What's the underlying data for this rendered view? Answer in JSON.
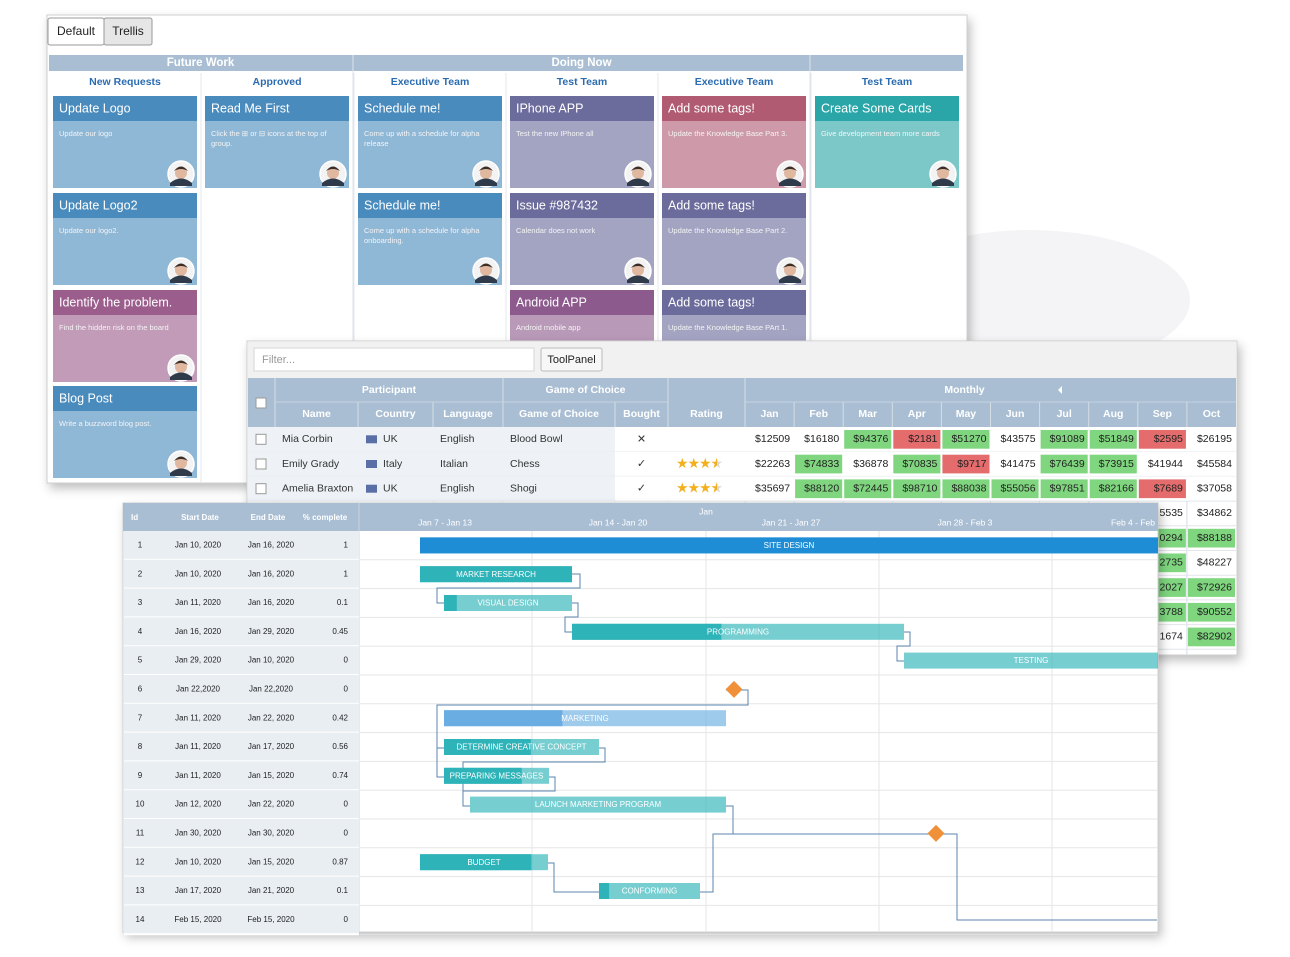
{
  "kanban": {
    "views": [
      "Default",
      "Trellis"
    ],
    "groups": [
      {
        "title": "Future Work",
        "columns": [
          {
            "title": "New Requests",
            "cards": [
              {
                "title": "Update Logo",
                "text": "Update our logo",
                "color": "#4a8bbd"
              },
              {
                "title": "Update Logo2",
                "text": "Update our logo2.",
                "color": "#4a8bbd"
              },
              {
                "title": "Identify the problem.",
                "text": "Find the hidden risk on the board",
                "color": "#9b5d8c"
              },
              {
                "title": "Blog Post",
                "text": "Write a buzzword blog post.",
                "color": "#4a8bbd"
              }
            ]
          },
          {
            "title": "Approved",
            "cards": [
              {
                "title": "Read Me First",
                "text": "Click the ⊞ or ⊟ icons at the top of group.",
                "color": "#4a8bbd"
              }
            ]
          }
        ]
      },
      {
        "title": "Doing Now",
        "columns": [
          {
            "title": "Executive Team",
            "cards": [
              {
                "title": "Schedule me!",
                "text": "Come up with a schedule for alpha release",
                "color": "#4a8bbd"
              },
              {
                "title": "Schedule me!",
                "text": "Come up with a schedule for alpha onboarding.",
                "color": "#4a8bbd"
              }
            ]
          },
          {
            "title": "Test Team",
            "cards": [
              {
                "title": "IPhone APP",
                "text": "Test the new IPhone all",
                "color": "#6b6b9c"
              },
              {
                "title": "Issue #987432",
                "text": "Calendar does not work",
                "color": "#6b6b9c"
              },
              {
                "title": "Android APP",
                "text": "Android mobile app",
                "color": "#8c5a8c"
              }
            ]
          },
          {
            "title": "Executive Team",
            "cards": [
              {
                "title": "Add some tags!",
                "text": "Update the Knowledge Base Part 3.",
                "color": "#b05b72"
              },
              {
                "title": "Add some tags!",
                "text": "Update the Knowledge Base Part 2.",
                "color": "#6b6b9c"
              },
              {
                "title": "Add some tags!",
                "text": "Update the Knowledge Base PArt 1.",
                "color": "#6b6b9c"
              }
            ]
          }
        ]
      },
      {
        "title": null,
        "columns": [
          {
            "title": "Test Team",
            "cards": [
              {
                "title": "Create Some Cards",
                "text": "Give development team more cards",
                "color": "#2ba6a8"
              }
            ]
          }
        ]
      }
    ]
  },
  "grid": {
    "filter_placeholder": "Filter...",
    "button": "ToolPanel",
    "groups": [
      "Participant",
      "Game of Choice",
      "Monthly"
    ],
    "columns": [
      "Name",
      "Country",
      "Language",
      "Game of Choice",
      "Bought",
      "Rating"
    ],
    "months": [
      "Jan",
      "Feb",
      "Mar",
      "Apr",
      "May",
      "Jun",
      "Jul",
      "Aug",
      "Sep",
      "Oct"
    ],
    "rows": [
      {
        "name": "Mia Corbin",
        "country": "UK",
        "language": "English",
        "game": "Blood Bowl",
        "bought": "✕",
        "rating": 0,
        "monthly": [
          "$12509",
          "$16180",
          "$94376",
          "$2181",
          "$51270",
          "$43575",
          "$91089",
          "$51849",
          "$2595",
          "$26195"
        ],
        "monthly_colors": [
          null,
          null,
          "#7fd67f",
          "#e46c6c",
          "#7fd67f",
          null,
          "#7fd67f",
          "#7fd67f",
          "#e46c6c",
          null
        ]
      },
      {
        "name": "Emily Grady",
        "country": "Italy",
        "language": "Italian",
        "game": "Chess",
        "bought": "✓",
        "rating": 3.5,
        "monthly": [
          "$22263",
          "$74833",
          "$36878",
          "$70835",
          "$9717",
          "$41475",
          "$76439",
          "$73915",
          "$41944",
          "$45584"
        ],
        "monthly_colors": [
          null,
          "#7fd67f",
          null,
          "#7fd67f",
          "#e46c6c",
          null,
          "#7fd67f",
          "#7fd67f",
          null,
          null
        ]
      },
      {
        "name": "Amelia Braxton",
        "country": "UK",
        "language": "English",
        "game": "Shogi",
        "bought": "✓",
        "rating": 3.5,
        "monthly": [
          "$35697",
          "$88120",
          "$72445",
          "$98710",
          "$88038",
          "$55056",
          "$97851",
          "$82166",
          "$7689",
          "$37058"
        ],
        "monthly_colors": [
          null,
          "#7fd67f",
          "#7fd67f",
          "#7fd67f",
          "#7fd67f",
          "#7fd67f",
          "#7fd67f",
          "#7fd67f",
          "#e46c6c",
          null
        ]
      }
    ],
    "partial_rows": [
      {
        "cells": [
          "5535",
          "$34862"
        ],
        "cell_colors": [
          null,
          null
        ]
      },
      {
        "cells": [
          "0294",
          "$88188"
        ],
        "cell_colors": [
          "#7fd67f",
          "#7fd67f"
        ]
      },
      {
        "cells": [
          "2735",
          "$48227"
        ],
        "cell_colors": [
          "#7fd67f",
          null
        ]
      },
      {
        "cells": [
          "2027",
          "$72926"
        ],
        "cell_colors": [
          "#7fd67f",
          "#7fd67f"
        ]
      },
      {
        "cells": [
          "3788",
          "$90552"
        ],
        "cell_colors": [
          "#7fd67f",
          "#7fd67f"
        ]
      },
      {
        "cells": [
          "1674",
          "$82902"
        ],
        "cell_colors": [
          null,
          "#7fd67f"
        ]
      }
    ]
  },
  "gantt": {
    "columns": [
      "Id",
      "Start Date",
      "End Date",
      "% complete"
    ],
    "month": "Jan",
    "weeks": [
      "Jan 7 - Jan 13",
      "Jan 14 - Jan 20",
      "Jan 21 - Jan 27",
      "Jan 28 - Feb 3",
      "Feb 4 - Feb"
    ],
    "tasks": [
      {
        "id": 1,
        "start": "Jan 10, 2020",
        "end": "Jan 16, 2020",
        "progress": 1,
        "name": "SITE DESIGN",
        "color": "#1f8dd6"
      },
      {
        "id": 2,
        "start": "Jan 10, 2020",
        "end": "Jan 16, 2020",
        "progress": 1,
        "name": "MARKET RESEARCH",
        "color": "#2db3b8"
      },
      {
        "id": 3,
        "start": "Jan 11, 2020",
        "end": "Jan 16, 2020",
        "progress": 0.1,
        "name": "VISUAL DESIGN",
        "color": "#2db3b8"
      },
      {
        "id": 4,
        "start": "Jan 16, 2020",
        "end": "Jan 29, 2020",
        "progress": 0.45,
        "name": "PROGRAMMING",
        "color": "#2db3b8"
      },
      {
        "id": 5,
        "start": "Jan 29, 2020",
        "end": "Jan 10, 2020",
        "progress": 0,
        "name": "TESTING",
        "color": "#2db3b8"
      },
      {
        "id": 6,
        "start": "Jan 22,2020",
        "end": "Jan 22,2020",
        "progress": 0,
        "color": "#f0913a"
      },
      {
        "id": 7,
        "start": "Jan 11, 2020",
        "end": "Jan 22, 2020",
        "progress": 0.42,
        "name": "MARKETING",
        "color": "#6aade2"
      },
      {
        "id": 8,
        "start": "Jan 11, 2020",
        "end": "Jan 17, 2020",
        "progress": 0.56,
        "name": "DETERMINE CREATIVE CONCEPT",
        "color": "#2db3b8"
      },
      {
        "id": 9,
        "start": "Jan 11, 2020",
        "end": "Jan 15, 2020",
        "progress": 0.74,
        "name": "PREPARING MESSAGES",
        "color": "#2db3b8"
      },
      {
        "id": 10,
        "start": "Jan 12, 2020",
        "end": "Jan 22, 2020",
        "progress": 0,
        "name": "LAUNCH MARKETING PROGRAM",
        "color": "#2db3b8"
      },
      {
        "id": 11,
        "start": "Jan 30, 2020",
        "end": "Jan 30, 2020",
        "progress": 0,
        "color": "#f0913a"
      },
      {
        "id": 12,
        "start": "Jan 10, 2020",
        "end": "Jan 15, 2020",
        "progress": 0.87,
        "name": "BUDGET",
        "color": "#2db3b8"
      },
      {
        "id": 13,
        "start": "Jan 17, 2020",
        "end": "Jan 21, 2020",
        "progress": 0.1,
        "name": "CONFORMING",
        "color": "#2db3b8"
      },
      {
        "id": 14,
        "start": "Feb 15, 2020",
        "end": "Feb 15, 2020",
        "progress": 0,
        "color": "#2db3b8"
      }
    ]
  }
}
